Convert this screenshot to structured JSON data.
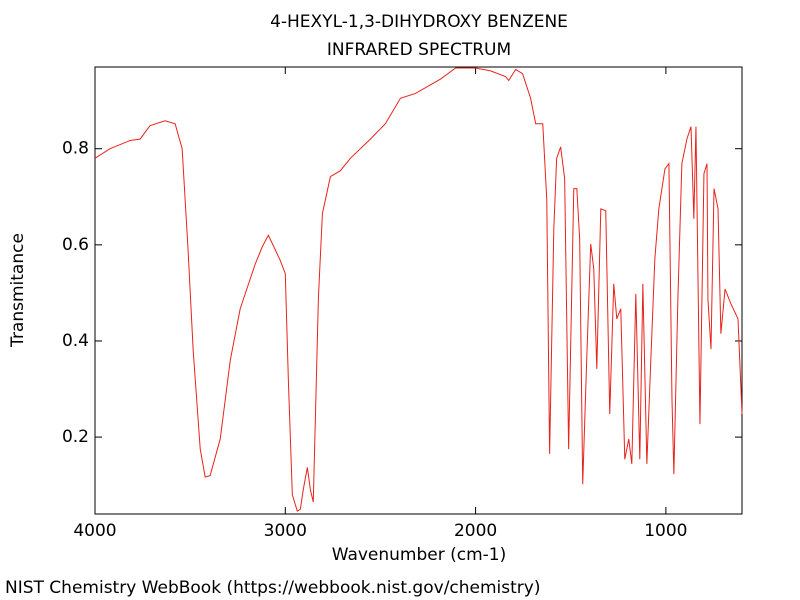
{
  "chart_data": {
    "type": "line",
    "title": "4-HEXYL-1,3-DIHYDROXY BENZENE",
    "subtitle": "INFRARED SPECTRUM",
    "x_label": "Wavenumber (cm-1)",
    "y_label": "Transmitance",
    "footer": "NIST Chemistry WebBook (https://webbook.nist.gov/chemistry)",
    "xlim": [
      4000,
      600
    ],
    "ylim": [
      0.04,
      0.97
    ],
    "xticks": [
      4000,
      3000,
      2000,
      1000
    ],
    "yticks": [
      0.2,
      0.4,
      0.6,
      0.8
    ],
    "grid": false,
    "series": [
      {
        "color": "#e8231b",
        "x": [
          4000,
          3921,
          3816,
          3763,
          3711,
          3632,
          3579,
          3542,
          3511,
          3484,
          3447,
          3421,
          3395,
          3342,
          3289,
          3237,
          3158,
          3121,
          3089,
          3053,
          3026,
          3000,
          2984,
          2963,
          2937,
          2921,
          2905,
          2884,
          2868,
          2853,
          2826,
          2805,
          2763,
          2711,
          2658,
          2553,
          2474,
          2395,
          2316,
          2184,
          2105,
          2000,
          1921,
          1842,
          1826,
          1789,
          1753,
          1711,
          1684,
          1647,
          1626,
          1611,
          1589,
          1574,
          1553,
          1532,
          1511,
          1484,
          1468,
          1453,
          1437,
          1416,
          1395,
          1379,
          1363,
          1342,
          1316,
          1295,
          1274,
          1258,
          1237,
          1216,
          1195,
          1179,
          1158,
          1137,
          1121,
          1100,
          1079,
          1058,
          1037,
          1005,
          984,
          968,
          958,
          937,
          916,
          889,
          868,
          853,
          842,
          821,
          800,
          784,
          779,
          763,
          747,
          726,
          711,
          689,
          658,
          621,
          600
        ],
        "values": [
          0.78,
          0.8,
          0.817,
          0.82,
          0.848,
          0.858,
          0.852,
          0.8,
          0.59,
          0.38,
          0.175,
          0.117,
          0.12,
          0.196,
          0.36,
          0.467,
          0.56,
          0.596,
          0.62,
          0.59,
          0.567,
          0.54,
          0.32,
          0.08,
          0.046,
          0.05,
          0.092,
          0.137,
          0.09,
          0.065,
          0.49,
          0.665,
          0.742,
          0.754,
          0.78,
          0.82,
          0.852,
          0.905,
          0.915,
          0.945,
          0.968,
          0.968,
          0.962,
          0.95,
          0.942,
          0.965,
          0.956,
          0.905,
          0.852,
          0.852,
          0.695,
          0.165,
          0.633,
          0.78,
          0.804,
          0.738,
          0.175,
          0.717,
          0.717,
          0.612,
          0.102,
          0.362,
          0.602,
          0.55,
          0.342,
          0.675,
          0.671,
          0.248,
          0.519,
          0.446,
          0.467,
          0.154,
          0.196,
          0.144,
          0.498,
          0.154,
          0.519,
          0.144,
          0.362,
          0.571,
          0.675,
          0.758,
          0.769,
          0.279,
          0.123,
          0.487,
          0.769,
          0.821,
          0.846,
          0.654,
          0.846,
          0.227,
          0.748,
          0.769,
          0.487,
          0.383,
          0.717,
          0.675,
          0.415,
          0.508,
          0.477,
          0.446,
          0.248
        ]
      }
    ]
  }
}
